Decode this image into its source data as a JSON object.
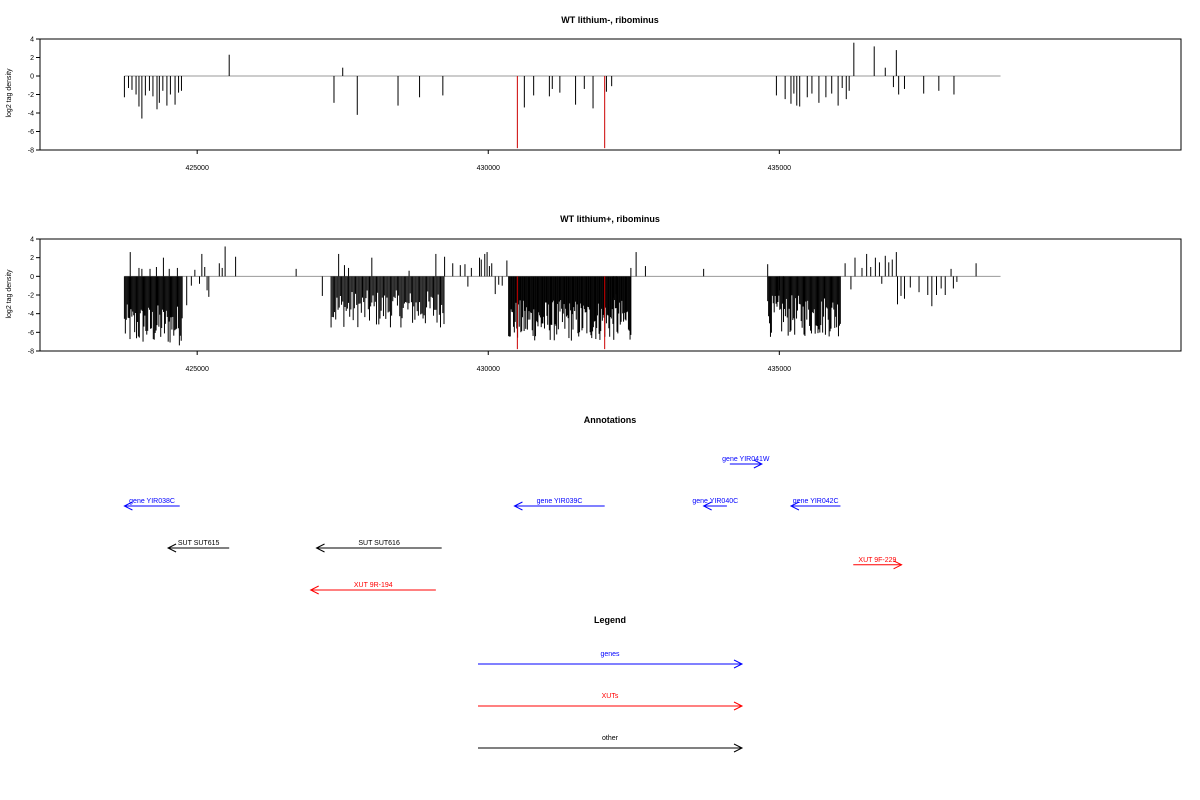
{
  "chart_data": [
    {
      "type": "bar",
      "title": "WT lithium-, ribominus",
      "ylabel": "log2 tag density",
      "xlabel": "",
      "xlim": [
        422300,
        441900
      ],
      "ylim": [
        -8,
        4
      ],
      "yticks": [
        4,
        2,
        0,
        -2,
        -4,
        -6,
        -8
      ],
      "xticks": [
        425000,
        430000,
        435000
      ],
      "xtick_labels": [
        "425000",
        "430000",
        "435000"
      ],
      "baseline_range": [
        423750,
        438800
      ],
      "colors": {
        "default": "#000000",
        "highlight": "#cc0000",
        "baseline": "#999999"
      },
      "series": [
        {
          "values": [
            [
              423750,
              -2.3
            ],
            [
              423820,
              -1.3
            ],
            [
              423880,
              -1.5
            ],
            [
              423950,
              -2.0
            ],
            [
              424000,
              -3.3
            ],
            [
              424050,
              -4.6
            ],
            [
              424110,
              -2.1
            ],
            [
              424180,
              -1.6
            ],
            [
              424240,
              -2.2
            ],
            [
              424310,
              -3.6
            ],
            [
              424350,
              -2.9
            ],
            [
              424410,
              -1.6
            ],
            [
              424480,
              -3.2
            ],
            [
              424540,
              -2.0
            ],
            [
              424620,
              -3.1
            ],
            [
              424680,
              -1.8
            ],
            [
              424730,
              -1.6
            ],
            [
              425550,
              2.3
            ],
            [
              427350,
              -2.9
            ],
            [
              427500,
              0.9
            ],
            [
              427750,
              -4.2
            ],
            [
              428450,
              -3.2
            ],
            [
              428820,
              -2.3
            ],
            [
              429220,
              -2.1
            ],
            [
              430620,
              -3.4
            ],
            [
              430780,
              -2.1
            ],
            [
              431050,
              -2.2
            ],
            [
              431100,
              -1.4
            ],
            [
              431230,
              -1.8
            ],
            [
              431500,
              -3.1
            ],
            [
              431650,
              -1.4
            ],
            [
              431800,
              -3.5
            ],
            [
              432030,
              -1.7
            ],
            [
              432120,
              -1.1
            ],
            [
              434950,
              -2.1
            ],
            [
              435100,
              -2.5
            ],
            [
              435200,
              -3.0
            ],
            [
              435250,
              -1.9
            ],
            [
              435300,
              -3.2
            ],
            [
              435350,
              -3.3
            ],
            [
              435480,
              -2.3
            ],
            [
              435560,
              -1.9
            ],
            [
              435680,
              -2.9
            ],
            [
              435800,
              -2.3
            ],
            [
              435900,
              -1.9
            ],
            [
              436010,
              -3.2
            ],
            [
              436080,
              -1.3
            ],
            [
              436150,
              -2.5
            ],
            [
              436200,
              -1.6
            ],
            [
              436280,
              3.6
            ],
            [
              436630,
              3.2
            ],
            [
              436820,
              0.9
            ],
            [
              436960,
              -1.2
            ],
            [
              437010,
              2.8
            ],
            [
              437050,
              -2.0
            ],
            [
              437150,
              -1.4
            ],
            [
              437480,
              -1.9
            ],
            [
              437740,
              -1.6
            ],
            [
              438000,
              -2.0
            ]
          ]
        },
        {
          "highlight": true,
          "values": [
            [
              430500,
              -7.8
            ],
            [
              432000,
              -7.8
            ]
          ]
        }
      ]
    },
    {
      "type": "bar",
      "title": "WT lithium+, ribominus",
      "ylabel": "log2 tag density",
      "xlabel": "",
      "xlim": [
        422300,
        441900
      ],
      "ylim": [
        -8,
        4
      ],
      "yticks": [
        4,
        2,
        0,
        -2,
        -4,
        -6,
        -8
      ],
      "xticks": [
        425000,
        430000,
        435000
      ],
      "xtick_labels": [
        "425000",
        "430000",
        "435000"
      ],
      "baseline_range": [
        423750,
        438800
      ],
      "colors": {
        "default": "#000000",
        "highlight": "#cc0000",
        "baseline": "#999999"
      },
      "dense_regions": [
        {
          "from": 423750,
          "to": 424750,
          "min": -7.5,
          "max": -3.0,
          "step": 16
        },
        {
          "from": 427300,
          "to": 429250,
          "min": -5.5,
          "max": -1.5,
          "step": 20
        },
        {
          "from": 430350,
          "to": 432450,
          "min": -7.0,
          "max": -2.5,
          "step": 14
        },
        {
          "from": 434800,
          "to": 436050,
          "min": -6.5,
          "max": -2.0,
          "step": 16
        }
      ],
      "series": [
        {
          "values": [
            [
              423850,
              2.6
            ],
            [
              424000,
              0.9
            ],
            [
              424050,
              0.8
            ],
            [
              424190,
              0.8
            ],
            [
              424300,
              1.0
            ],
            [
              424420,
              2.0
            ],
            [
              424520,
              0.8
            ],
            [
              424660,
              0.9
            ],
            [
              424820,
              -3.1
            ],
            [
              424900,
              -1.0
            ],
            [
              424960,
              0.7
            ],
            [
              425040,
              -0.8
            ],
            [
              425080,
              2.4
            ],
            [
              425130,
              1.0
            ],
            [
              425170,
              -1.5
            ],
            [
              425200,
              -2.2
            ],
            [
              425380,
              1.4
            ],
            [
              425430,
              0.9
            ],
            [
              425480,
              3.2
            ],
            [
              425660,
              2.1
            ],
            [
              426700,
              0.8
            ],
            [
              427150,
              -2.1
            ],
            [
              427430,
              2.4
            ],
            [
              427530,
              1.2
            ],
            [
              427600,
              0.9
            ],
            [
              428000,
              2.0
            ],
            [
              428640,
              0.6
            ],
            [
              429100,
              2.4
            ],
            [
              429250,
              2.1
            ],
            [
              429390,
              1.4
            ],
            [
              429520,
              1.2
            ],
            [
              429600,
              1.3
            ],
            [
              429650,
              -1.1
            ],
            [
              429710,
              0.9
            ],
            [
              429850,
              2.0
            ],
            [
              429880,
              1.8
            ],
            [
              429940,
              2.4
            ],
            [
              429980,
              2.6
            ],
            [
              430020,
              1.1
            ],
            [
              430060,
              1.4
            ],
            [
              430120,
              -1.9
            ],
            [
              430180,
              -0.9
            ],
            [
              430240,
              -1.0
            ],
            [
              430320,
              1.7
            ],
            [
              432150,
              -2.3
            ],
            [
              432200,
              -1.9
            ],
            [
              432450,
              0.9
            ],
            [
              432540,
              2.6
            ],
            [
              432700,
              1.1
            ],
            [
              433700,
              0.8
            ],
            [
              434800,
              1.3
            ],
            [
              435000,
              -1.5
            ],
            [
              435070,
              -0.9
            ],
            [
              436130,
              1.4
            ],
            [
              436230,
              -1.4
            ],
            [
              436300,
              2.0
            ],
            [
              436420,
              0.9
            ],
            [
              436500,
              2.4
            ],
            [
              436570,
              1.0
            ],
            [
              436650,
              2.0
            ],
            [
              436720,
              1.5
            ],
            [
              436760,
              -0.8
            ],
            [
              436820,
              2.2
            ],
            [
              436880,
              1.5
            ],
            [
              436940,
              1.8
            ],
            [
              437010,
              2.6
            ],
            [
              437030,
              -3.0
            ],
            [
              437090,
              -2.1
            ],
            [
              437150,
              -2.4
            ],
            [
              437250,
              -1.2
            ],
            [
              437400,
              -1.7
            ],
            [
              437550,
              -2.0
            ],
            [
              437620,
              -3.2
            ],
            [
              437700,
              -2.0
            ],
            [
              437780,
              -1.3
            ],
            [
              437850,
              -2.0
            ],
            [
              437950,
              0.8
            ],
            [
              437990,
              -1.3
            ],
            [
              438050,
              -0.6
            ],
            [
              438380,
              1.4
            ]
          ]
        },
        {
          "highlight": true,
          "values": [
            [
              430500,
              -7.8
            ],
            [
              432000,
              -7.8
            ]
          ]
        }
      ]
    }
  ],
  "annotations": {
    "title": "Annotations",
    "xlim": [
      422300,
      441900
    ],
    "features": [
      {
        "label": "gene YIR038C",
        "start": 424700,
        "end": 423750,
        "row": 1,
        "category": "genes"
      },
      {
        "label": "SUT SUT615",
        "start": 425550,
        "end": 424500,
        "row": 2,
        "category": "other"
      },
      {
        "label": "SUT SUT616",
        "start": 429200,
        "end": 427050,
        "row": 2,
        "category": "other"
      },
      {
        "label": "XUT 9R-194",
        "start": 429100,
        "end": 426950,
        "row": 3,
        "category": "XUTs"
      },
      {
        "label": "gene YIR039C",
        "start": 432000,
        "end": 430450,
        "row": 1,
        "category": "genes"
      },
      {
        "label": "gene YIR040C",
        "start": 434100,
        "end": 433700,
        "row": 1,
        "category": "genes"
      },
      {
        "label": "gene YIR041W",
        "start": 434150,
        "end": 434700,
        "row": 0,
        "category": "genes"
      },
      {
        "label": "gene YIR042C",
        "start": 436050,
        "end": 435200,
        "row": 1,
        "category": "genes"
      },
      {
        "label": "XUT 9F-229",
        "start": 436270,
        "end": 437100,
        "row": 2.4,
        "category": "XUTs"
      }
    ]
  },
  "legend": {
    "title": "Legend",
    "items": [
      {
        "label": "genes",
        "color": "#0000ff"
      },
      {
        "label": "XUTs",
        "color": "#ff0000"
      },
      {
        "label": "other",
        "color": "#000000"
      }
    ]
  },
  "category_colors": {
    "genes": "#0000ff",
    "XUTs": "#ff0000",
    "other": "#000000"
  }
}
